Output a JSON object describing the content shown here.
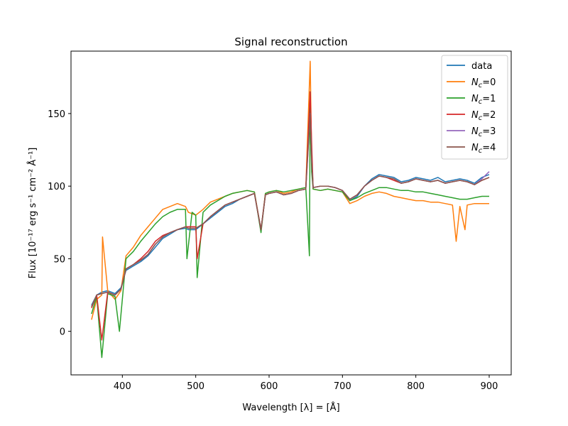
{
  "chart_data": {
    "type": "line",
    "title": "Signal reconstruction",
    "xlabel": "Wavelength [λ] = [Å]",
    "ylabel": "Flux [10⁻¹⁷ erg s⁻¹ cm⁻² Å⁻¹]",
    "xlim": [
      330,
      930
    ],
    "ylim": [
      -30,
      193
    ],
    "xticks": [
      400,
      500,
      600,
      700,
      800,
      900
    ],
    "yticks": [
      0,
      50,
      100,
      150
    ],
    "legend_position": "top-right",
    "grid": false,
    "series": [
      {
        "name": "data",
        "color": "#1f77b4",
        "x": [
          358,
          365,
          372,
          380,
          390,
          398,
          405,
          415,
          425,
          435,
          445,
          455,
          465,
          475,
          486,
          490,
          500,
          510,
          520,
          530,
          540,
          550,
          560,
          570,
          580,
          589,
          595,
          600,
          610,
          620,
          630,
          640,
          650,
          656,
          658,
          660,
          670,
          680,
          690,
          700,
          710,
          720,
          730,
          740,
          750,
          760,
          770,
          780,
          790,
          800,
          810,
          820,
          830,
          840,
          850,
          860,
          870,
          880,
          890,
          900
        ],
        "y": [
          18,
          25,
          27,
          28,
          26,
          30,
          42,
          45,
          48,
          52,
          58,
          64,
          67,
          70,
          71,
          70,
          70,
          74,
          78,
          82,
          86,
          88,
          91,
          93,
          95,
          70,
          94,
          95,
          96,
          94,
          95,
          97,
          98,
          160,
          120,
          99,
          100,
          100,
          99,
          97,
          90,
          93,
          100,
          105,
          108,
          107,
          106,
          103,
          104,
          106,
          105,
          104,
          106,
          103,
          104,
          105,
          104,
          102,
          106,
          108
        ]
      },
      {
        "name": "N_c=0",
        "label_html": "N<tspan font-style=\"italic\">c</tspan>=0",
        "color": "#ff7f0e",
        "x": [
          358,
          365,
          372,
          373,
          380,
          390,
          398,
          405,
          415,
          425,
          435,
          445,
          455,
          465,
          475,
          486,
          490,
          500,
          510,
          520,
          530,
          540,
          550,
          560,
          570,
          580,
          589,
          595,
          600,
          610,
          620,
          630,
          640,
          650,
          656,
          658,
          660,
          670,
          680,
          690,
          700,
          710,
          720,
          730,
          740,
          750,
          760,
          770,
          780,
          790,
          800,
          810,
          820,
          830,
          840,
          850,
          855,
          860,
          867,
          870,
          880,
          890,
          900
        ],
        "y": [
          8,
          22,
          25,
          65,
          28,
          22,
          28,
          52,
          58,
          66,
          72,
          78,
          84,
          86,
          88,
          86,
          82,
          80,
          84,
          89,
          91,
          93,
          95,
          96,
          97,
          96,
          70,
          95,
          96,
          97,
          95,
          96,
          98,
          99,
          186,
          120,
          98,
          97,
          98,
          97,
          96,
          88,
          90,
          93,
          95,
          96,
          95,
          93,
          92,
          91,
          90,
          90,
          89,
          89,
          88,
          87,
          62,
          86,
          70,
          87,
          88,
          88,
          88
        ]
      },
      {
        "name": "N_c=1",
        "label_html": "N<tspan font-style=\"italic\">c</tspan>=1",
        "color": "#2ca02c",
        "x": [
          358,
          365,
          372,
          380,
          390,
          396,
          405,
          415,
          425,
          435,
          445,
          455,
          465,
          475,
          486,
          488,
          495,
          500,
          502,
          510,
          520,
          530,
          540,
          550,
          560,
          570,
          580,
          589,
          595,
          600,
          610,
          620,
          630,
          640,
          650,
          655,
          656,
          658,
          660,
          670,
          680,
          690,
          700,
          710,
          720,
          730,
          740,
          750,
          760,
          770,
          780,
          790,
          800,
          810,
          820,
          830,
          840,
          850,
          860,
          870,
          880,
          890,
          900
        ],
        "y": [
          12,
          24,
          -18,
          26,
          24,
          0,
          50,
          55,
          62,
          68,
          74,
          79,
          82,
          84,
          84,
          50,
          82,
          80,
          37,
          82,
          87,
          90,
          93,
          95,
          96,
          97,
          96,
          68,
          95,
          96,
          97,
          96,
          97,
          98,
          99,
          52,
          165,
          110,
          98,
          97,
          98,
          97,
          96,
          90,
          92,
          95,
          97,
          99,
          99,
          98,
          97,
          97,
          96,
          96,
          95,
          94,
          93,
          92,
          91,
          91,
          92,
          93,
          93
        ]
      },
      {
        "name": "N_c=2",
        "label_html": "N<tspan font-style=\"italic\">c</tspan>=2",
        "color": "#d62728",
        "x": [
          358,
          365,
          372,
          380,
          390,
          398,
          405,
          415,
          425,
          435,
          445,
          455,
          465,
          475,
          486,
          490,
          500,
          502,
          510,
          520,
          530,
          540,
          550,
          560,
          570,
          580,
          589,
          595,
          600,
          610,
          620,
          630,
          640,
          650,
          656,
          658,
          660,
          670,
          680,
          690,
          700,
          710,
          720,
          730,
          740,
          750,
          760,
          770,
          780,
          790,
          800,
          810,
          820,
          830,
          840,
          850,
          860,
          870,
          880,
          890,
          900
        ],
        "y": [
          16,
          25,
          -6,
          27,
          25,
          29,
          43,
          46,
          50,
          55,
          62,
          66,
          68,
          70,
          72,
          72,
          72,
          50,
          74,
          79,
          83,
          87,
          89,
          91,
          93,
          95,
          70,
          94,
          95,
          96,
          94,
          95,
          97,
          98,
          165,
          130,
          99,
          100,
          100,
          99,
          97,
          91,
          94,
          100,
          104,
          107,
          106,
          104,
          102,
          103,
          105,
          104,
          103,
          104,
          102,
          103,
          104,
          103,
          101,
          104,
          106
        ]
      },
      {
        "name": "N_c=3",
        "label_html": "N<tspan font-style=\"italic\">c</tspan>=3",
        "color": "#9467bd",
        "x": [
          358,
          365,
          372,
          380,
          390,
          398,
          405,
          415,
          425,
          435,
          445,
          455,
          465,
          475,
          486,
          490,
          500,
          510,
          520,
          530,
          540,
          550,
          560,
          570,
          580,
          589,
          595,
          600,
          610,
          620,
          630,
          640,
          650,
          656,
          658,
          660,
          670,
          680,
          690,
          700,
          710,
          720,
          730,
          740,
          750,
          760,
          770,
          780,
          790,
          800,
          810,
          820,
          830,
          840,
          850,
          860,
          870,
          880,
          890,
          900
        ],
        "y": [
          17,
          25,
          26,
          27,
          25,
          29,
          43,
          46,
          49,
          53,
          60,
          65,
          68,
          70,
          72,
          71,
          71,
          74,
          79,
          83,
          87,
          89,
          91,
          93,
          95,
          70,
          94,
          95,
          96,
          94,
          95,
          97,
          98,
          150,
          118,
          99,
          100,
          100,
          99,
          97,
          91,
          94,
          100,
          104,
          107,
          106,
          105,
          102,
          103,
          105,
          104,
          103,
          104,
          102,
          103,
          104,
          103,
          101,
          105,
          110
        ]
      },
      {
        "name": "N_c=4",
        "label_html": "N<tspan font-style=\"italic\">c</tspan>=4",
        "color": "#8c564b",
        "x": [
          358,
          365,
          372,
          380,
          390,
          398,
          405,
          415,
          425,
          435,
          445,
          455,
          465,
          475,
          486,
          490,
          500,
          510,
          520,
          530,
          540,
          550,
          560,
          570,
          580,
          589,
          595,
          600,
          610,
          620,
          630,
          640,
          650,
          656,
          658,
          660,
          670,
          680,
          690,
          700,
          710,
          720,
          730,
          740,
          750,
          760,
          770,
          780,
          790,
          800,
          810,
          820,
          830,
          840,
          850,
          860,
          870,
          880,
          890,
          900
        ],
        "y": [
          17,
          25,
          26,
          27,
          25,
          29,
          43,
          46,
          49,
          53,
          60,
          65,
          68,
          70,
          72,
          71,
          71,
          74,
          79,
          83,
          87,
          89,
          91,
          93,
          95,
          70,
          94,
          95,
          96,
          94,
          95,
          97,
          98,
          150,
          118,
          99,
          100,
          100,
          99,
          97,
          91,
          94,
          100,
          104,
          107,
          106,
          105,
          102,
          103,
          105,
          104,
          103,
          104,
          102,
          103,
          104,
          103,
          101,
          104,
          106
        ]
      }
    ]
  }
}
